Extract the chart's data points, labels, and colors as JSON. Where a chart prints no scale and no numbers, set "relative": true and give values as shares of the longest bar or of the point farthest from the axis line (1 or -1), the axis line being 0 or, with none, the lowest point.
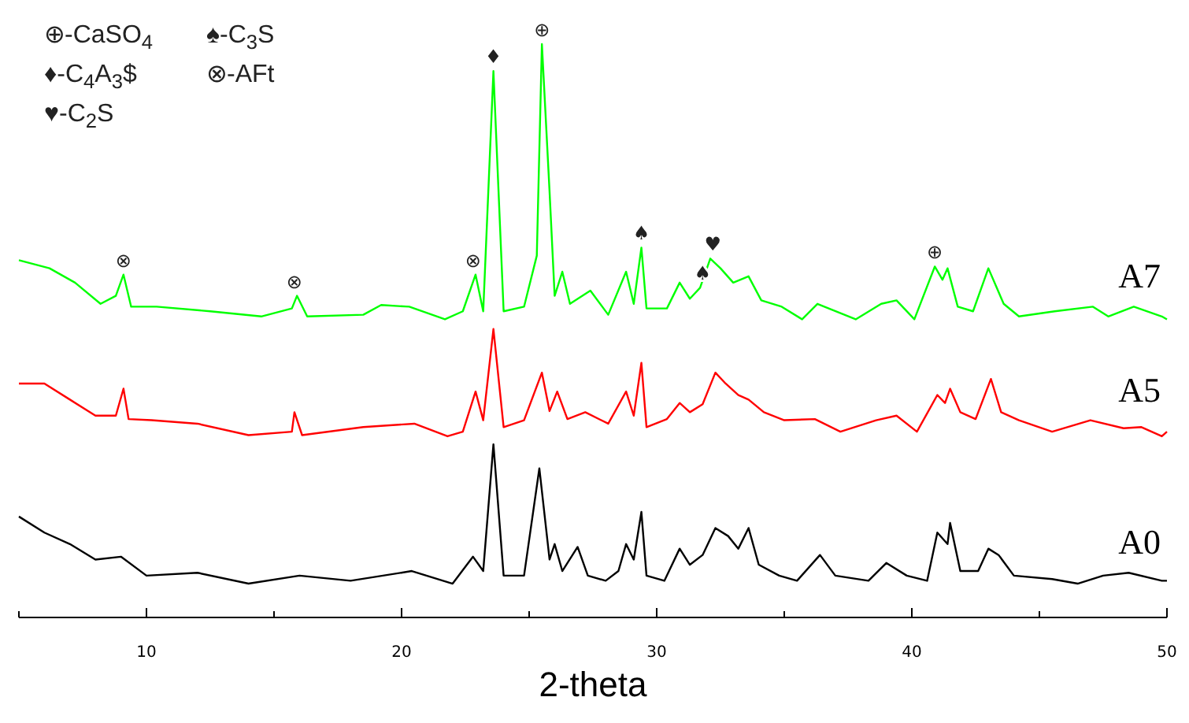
{
  "chart_data": {
    "type": "line",
    "relative": true,
    "xlabel": "2-theta",
    "xlim": [
      5,
      50
    ],
    "xticks": [
      {
        "value": 5,
        "label": null
      },
      10,
      {
        "value": 15,
        "label": null
      },
      20,
      {
        "value": 25,
        "label": null
      },
      30,
      {
        "value": 35,
        "label": null
      },
      40,
      {
        "value": 45,
        "label": null
      },
      50
    ],
    "legend": false,
    "series": [
      {
        "name": "A7",
        "color": "#00ff00",
        "x": [
          5.0,
          6.2,
          7.2,
          8.2,
          8.8,
          9.1,
          9.4,
          10.4,
          12.5,
          14.5,
          15.7,
          15.9,
          16.3,
          18.5,
          19.2,
          20.3,
          21.7,
          22.4,
          22.9,
          23.2,
          23.6,
          24.0,
          24.8,
          25.3,
          25.5,
          25.8,
          26.0,
          26.3,
          26.6,
          27.4,
          28.1,
          28.8,
          29.1,
          29.4,
          29.6,
          30.4,
          30.9,
          31.3,
          31.7,
          32.1,
          32.5,
          33.0,
          33.6,
          34.1,
          34.9,
          35.7,
          36.3,
          37.8,
          38.8,
          39.4,
          40.1,
          40.9,
          41.2,
          41.4,
          41.8,
          42.4,
          43.0,
          43.6,
          44.2,
          45.6,
          47.1,
          47.7,
          48.7,
          49.8,
          50.0
        ],
        "values": [
          0.623,
          0.609,
          0.584,
          0.547,
          0.561,
          0.598,
          0.542,
          0.542,
          0.534,
          0.525,
          0.539,
          0.561,
          0.525,
          0.528,
          0.545,
          0.542,
          0.52,
          0.534,
          0.598,
          0.534,
          0.953,
          0.534,
          0.542,
          0.631,
          1,
          0.743,
          0.561,
          0.603,
          0.547,
          0.57,
          0.528,
          0.603,
          0.547,
          0.645,
          0.539,
          0.539,
          0.584,
          0.556,
          0.575,
          0.626,
          0.609,
          0.584,
          0.595,
          0.553,
          0.542,
          0.52,
          0.547,
          0.52,
          0.547,
          0.553,
          0.52,
          0.612,
          0.589,
          0.609,
          0.542,
          0.534,
          0.609,
          0.547,
          0.525,
          0.534,
          0.542,
          0.525,
          0.542,
          0.525,
          0.52
        ]
      },
      {
        "name": "A5",
        "color": "#ff0000",
        "x": [
          5.0,
          6.0,
          7.0,
          8.0,
          8.8,
          9.1,
          9.3,
          10.2,
          12.0,
          14.0,
          15.7,
          15.8,
          16.1,
          18.5,
          20.5,
          21.8,
          22.4,
          22.9,
          23.2,
          23.6,
          24.0,
          24.8,
          25.5,
          25.8,
          26.1,
          26.5,
          27.2,
          28.1,
          28.8,
          29.1,
          29.4,
          29.6,
          30.4,
          30.9,
          31.3,
          31.8,
          32.3,
          32.7,
          33.2,
          33.6,
          34.2,
          35.0,
          36.2,
          37.2,
          38.6,
          39.4,
          40.2,
          41.0,
          41.3,
          41.5,
          41.9,
          42.5,
          43.1,
          43.5,
          44.2,
          45.5,
          47.0,
          48.3,
          49.0,
          49.8,
          50.0
        ],
        "values": [
          0.408,
          0.408,
          0.38,
          0.352,
          0.352,
          0.399,
          0.346,
          0.344,
          0.338,
          0.318,
          0.324,
          0.358,
          0.318,
          0.332,
          0.338,
          0.316,
          0.324,
          0.394,
          0.344,
          0.503,
          0.332,
          0.344,
          0.427,
          0.36,
          0.394,
          0.346,
          0.358,
          0.338,
          0.394,
          0.352,
          0.444,
          0.332,
          0.346,
          0.374,
          0.358,
          0.372,
          0.427,
          0.408,
          0.388,
          0.38,
          0.358,
          0.344,
          0.346,
          0.324,
          0.344,
          0.352,
          0.324,
          0.388,
          0.374,
          0.399,
          0.358,
          0.346,
          0.416,
          0.358,
          0.344,
          0.324,
          0.344,
          0.33,
          0.332,
          0.316,
          0.324
        ]
      },
      {
        "name": "A0",
        "color": "#000000",
        "x": [
          5.0,
          6.0,
          7.0,
          8.0,
          9.0,
          10.0,
          12.0,
          14.0,
          16.0,
          18.0,
          20.4,
          22.0,
          22.8,
          23.2,
          23.6,
          24.0,
          24.8,
          25.4,
          25.8,
          26.0,
          26.3,
          26.9,
          27.3,
          28.0,
          28.5,
          28.8,
          29.1,
          29.4,
          29.6,
          30.3,
          30.9,
          31.3,
          31.8,
          32.3,
          32.8,
          33.2,
          33.6,
          34.0,
          34.8,
          35.5,
          36.4,
          37.0,
          38.3,
          39.0,
          39.8,
          40.6,
          41.0,
          41.4,
          41.5,
          41.9,
          42.6,
          43.0,
          43.4,
          44.0,
          45.5,
          46.5,
          47.5,
          48.5,
          49.8,
          50.0
        ],
        "values": [
          0.176,
          0.148,
          0.128,
          0.101,
          0.106,
          0.073,
          0.078,
          0.059,
          0.073,
          0.064,
          0.081,
          0.059,
          0.106,
          0.081,
          0.302,
          0.073,
          0.073,
          0.26,
          0.101,
          0.128,
          0.081,
          0.123,
          0.073,
          0.064,
          0.081,
          0.128,
          0.101,
          0.184,
          0.073,
          0.064,
          0.12,
          0.092,
          0.109,
          0.156,
          0.142,
          0.12,
          0.156,
          0.092,
          0.073,
          0.064,
          0.109,
          0.073,
          0.064,
          0.095,
          0.073,
          0.064,
          0.148,
          0.128,
          0.165,
          0.081,
          0.081,
          0.12,
          0.109,
          0.073,
          0.067,
          0.059,
          0.073,
          0.078,
          0.064,
          0.064
        ]
      }
    ],
    "annotations": [
      "⊕-CaSO$_{4}$",
      "♠-C$_{3}$S",
      "♦-C$_{4}$A$_{3}$$",
      "⊗-AFt",
      "♥-C$_{2}$S",
      {
        "text": "⊗",
        "x": 9.1,
        "y": 0.598
      },
      {
        "text": "⊗",
        "x": 15.8,
        "y": 0.561
      },
      {
        "text": "⊗",
        "x": 22.8,
        "y": 0.598
      },
      {
        "text": "♦",
        "x": 23.6,
        "y": 0.953
      },
      {
        "text": "⊕",
        "x": 25.5,
        "y": 1
      },
      {
        "text": "♠",
        "x": 29.4,
        "y": 0.645
      },
      {
        "text": "♠",
        "x": 31.8,
        "y": 0.575
      },
      {
        "text": "♥",
        "x": 32.2,
        "y": 0.626
      },
      {
        "text": "⊕",
        "x": 40.9,
        "y": 0.612
      }
    ]
  }
}
